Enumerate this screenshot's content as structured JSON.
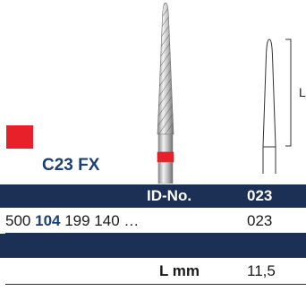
{
  "product": {
    "code": "C23 FX",
    "color_code": "#e8202a"
  },
  "table": {
    "id_header": "ID-No.",
    "id_value_header": "023",
    "reference": {
      "prefix": "500",
      "bold_part": "104",
      "suffix": "199 140 …",
      "id": "023"
    },
    "length_label": "L mm",
    "length_value": "11,5"
  },
  "outline": {
    "dimension_label": "L"
  }
}
